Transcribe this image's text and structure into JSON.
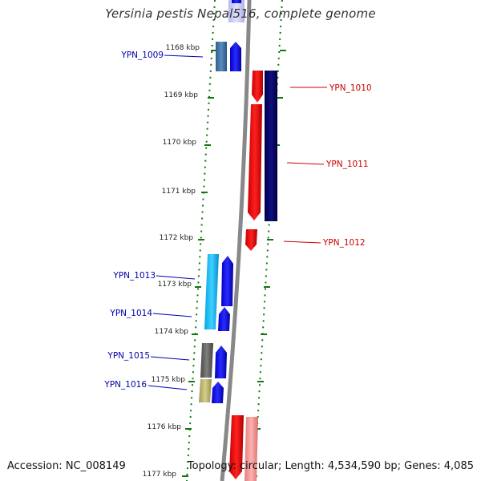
{
  "title": "Yersinia pestis Nepal516, complete genome",
  "accession": "Accession: NC_008149",
  "topology": "Topology: circular; Length: 4,534,590 bp; Genes: 4,085",
  "colors": {
    "forward_label": "#0000aa",
    "reverse_label": "#cc0000",
    "ruler_tick": "#117711",
    "backbone": "#888888"
  },
  "ruler_labels": [
    "1168 kbp",
    "1169 kbp",
    "1170 kbp",
    "1171 kbp",
    "1172 kbp",
    "1173 kbp",
    "1174 kbp",
    "1175 kbp",
    "1176 kbp",
    "1177 kbp"
  ],
  "genes": [
    {
      "id": "YPN_1009",
      "strand": "forward"
    },
    {
      "id": "YPN_1010",
      "strand": "reverse"
    },
    {
      "id": "YPN_1011",
      "strand": "reverse"
    },
    {
      "id": "YPN_1012",
      "strand": "reverse"
    },
    {
      "id": "YPN_1013",
      "strand": "forward"
    },
    {
      "id": "YPN_1014",
      "strand": "forward"
    },
    {
      "id": "YPN_1015",
      "strand": "forward"
    },
    {
      "id": "YPN_1016",
      "strand": "forward"
    }
  ]
}
